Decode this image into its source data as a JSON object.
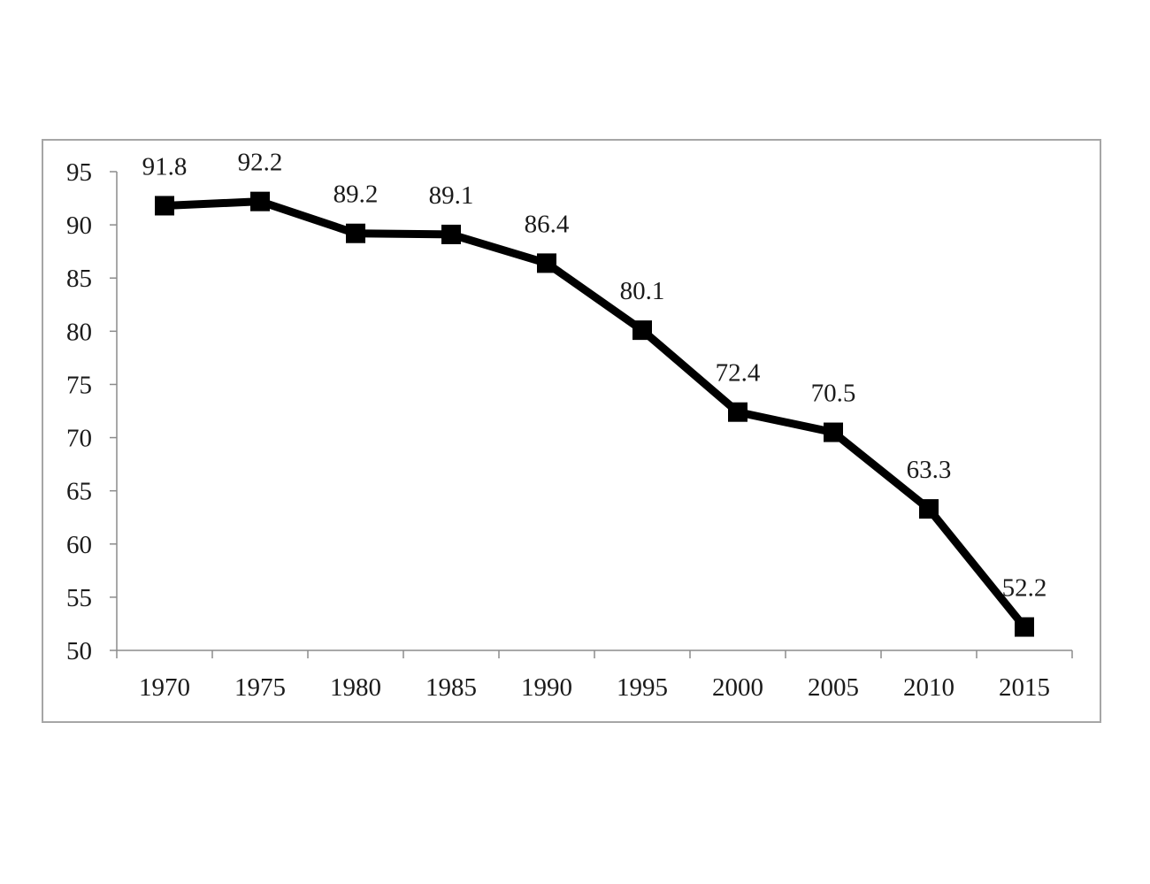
{
  "chart_data": {
    "type": "line",
    "title": "",
    "xlabel": "",
    "ylabel": "",
    "x": [
      "1970",
      "1975",
      "1980",
      "1985",
      "1990",
      "1995",
      "2000",
      "2005",
      "2010",
      "2015"
    ],
    "series": [
      {
        "values": [
          91.8,
          92.2,
          89.2,
          89.1,
          86.4,
          80.1,
          72.4,
          70.5,
          63.3,
          52.2
        ],
        "labels": [
          "91.8",
          "92.2",
          "89.2",
          "89.1",
          "86.4",
          "80.1",
          "72.4",
          "70.5",
          "63.3",
          "52.2"
        ],
        "color": "#000000",
        "marker": "square"
      }
    ],
    "ylim": [
      50,
      95
    ],
    "yticks": [
      "50",
      "55",
      "60",
      "65",
      "70",
      "75",
      "80",
      "85",
      "90",
      "95"
    ],
    "grid": false,
    "legend": "none",
    "frame_color": "#a6a6a6",
    "axis_color": "#8c8c8c"
  }
}
